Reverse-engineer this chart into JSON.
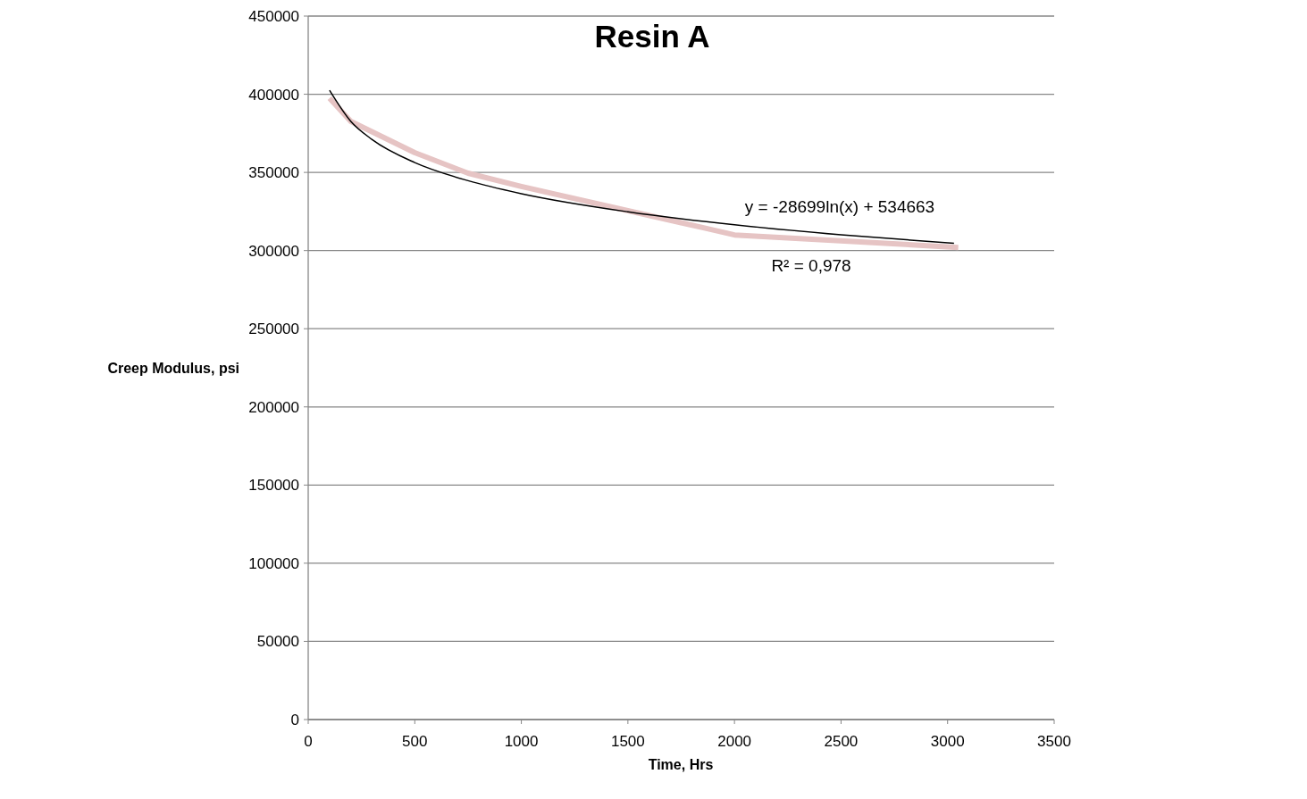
{
  "chart_data": {
    "type": "line",
    "title": "Resin A",
    "xlabel": "Time, Hrs",
    "ylabel": "Creep Modulus, psi",
    "xlim": [
      0,
      3500
    ],
    "xticks": [
      0,
      500,
      1000,
      1500,
      2000,
      2500,
      3000,
      3500
    ],
    "ylim": [
      0,
      450000
    ],
    "yticks": [
      0,
      50000,
      100000,
      150000,
      200000,
      250000,
      300000,
      350000,
      400000,
      450000
    ],
    "grid": "y",
    "marker": "none",
    "annotations": [
      "y = -28699ln(x) + 534663",
      "R² = 0,978"
    ],
    "series": [
      {
        "color": "#e6c4c4",
        "x": [
          100,
          200,
          500,
          750,
          1000,
          1850,
          2000,
          3050
        ],
        "values": [
          397500,
          382600,
          362600,
          349500,
          341000,
          314700,
          310000,
          302000
        ]
      },
      {
        "color": "#000000",
        "x": [
          100,
          200,
          300,
          500,
          750,
          1000,
          1500,
          2000,
          2500,
          3030
        ],
        "values": [
          402500,
          382600,
          371000,
          356300,
          344700,
          336400,
          324800,
          316500,
          310100,
          304600
        ]
      }
    ]
  }
}
